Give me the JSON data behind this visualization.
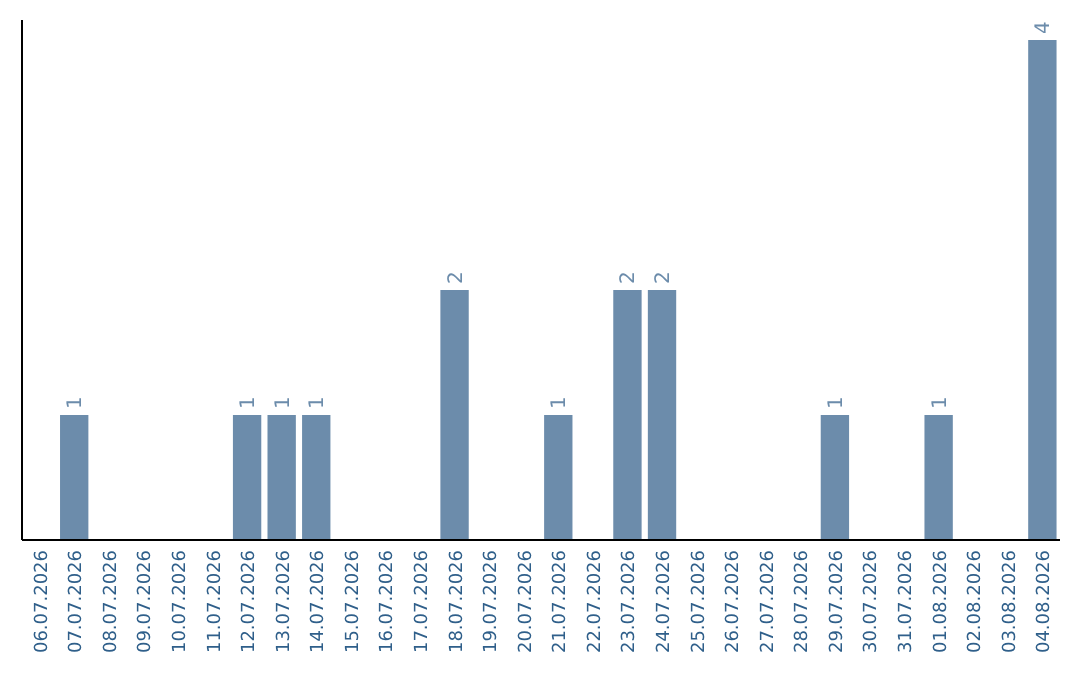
{
  "chart_data": {
    "type": "bar",
    "categories": [
      "06.07.2026",
      "07.07.2026",
      "08.07.2026",
      "09.07.2026",
      "10.07.2026",
      "11.07.2026",
      "12.07.2026",
      "13.07.2026",
      "14.07.2026",
      "15.07.2026",
      "16.07.2026",
      "17.07.2026",
      "18.07.2026",
      "19.07.2026",
      "20.07.2026",
      "21.07.2026",
      "22.07.2026",
      "23.07.2026",
      "24.07.2026",
      "25.07.2026",
      "26.07.2026",
      "27.07.2026",
      "28.07.2026",
      "29.07.2026",
      "30.07.2026",
      "31.07.2026",
      "01.08.2026",
      "02.08.2026",
      "03.08.2026",
      "04.08.2026"
    ],
    "values": [
      0,
      1,
      0,
      0,
      0,
      0,
      1,
      1,
      1,
      0,
      0,
      0,
      2,
      0,
      0,
      1,
      0,
      2,
      2,
      0,
      0,
      0,
      0,
      1,
      0,
      0,
      1,
      0,
      0,
      4
    ],
    "value_labels": [
      null,
      "1",
      null,
      null,
      null,
      null,
      "1",
      "1",
      "1",
      null,
      null,
      null,
      "2",
      null,
      null,
      "1",
      null,
      "2",
      "2",
      null,
      null,
      null,
      null,
      "1",
      null,
      null,
      "1",
      null,
      null,
      "4"
    ],
    "color": "#6c8cab",
    "tick_labels": "x"
  }
}
